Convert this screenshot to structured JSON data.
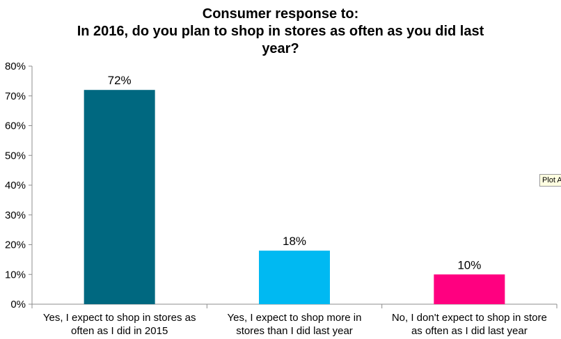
{
  "chart_data": {
    "type": "bar",
    "title_lines": [
      "Consumer response to:",
      "In 2016, do you plan to shop in stores as often as you did last",
      "year?"
    ],
    "categories": [
      [
        "Yes, I expect to shop in stores as",
        "often as I did in 2015"
      ],
      [
        "Yes, I expect to shop more in",
        "stores than I did last year"
      ],
      [
        "No, I don't expect to shop in store",
        "as often as I did last year"
      ]
    ],
    "values": [
      72,
      18,
      10
    ],
    "data_labels": [
      "72%",
      "18%",
      "10%"
    ],
    "colors": [
      "#006880",
      "#00b9f2",
      "#ff0080"
    ],
    "ylim": [
      0,
      80
    ],
    "yticks": [
      "0%",
      "10%",
      "20%",
      "30%",
      "40%",
      "50%",
      "60%",
      "70%",
      "80%"
    ],
    "grid": false,
    "legend": "none"
  },
  "tooltip": {
    "text": "Plot A"
  }
}
